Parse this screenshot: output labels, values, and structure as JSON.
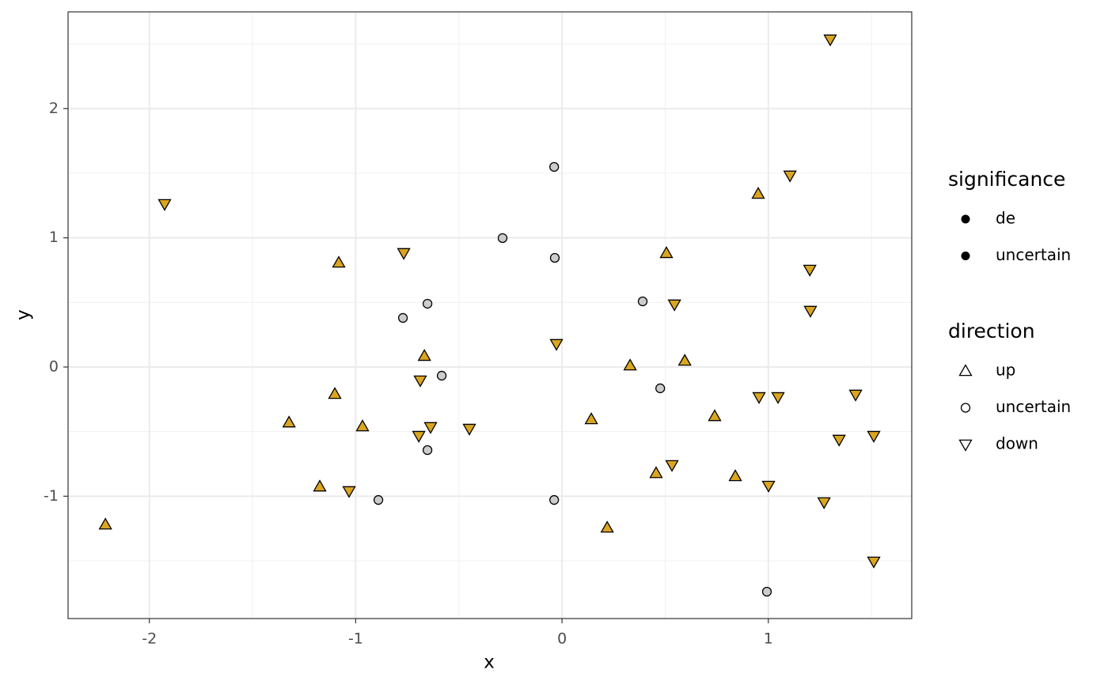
{
  "chart_data": {
    "type": "scatter",
    "x_label": "x",
    "y_label": "y",
    "xlim": [
      -2.394,
      1.695
    ],
    "ylim": [
      -1.947,
      2.749
    ],
    "xticks": [
      -2,
      -1,
      0,
      1
    ],
    "yticks": [
      -1,
      0,
      1,
      2
    ],
    "x_minor_ticks": [
      -1.5,
      -0.5,
      0.5,
      1.5
    ],
    "y_minor_ticks": [
      -1.5,
      -0.5,
      0.5,
      1.5,
      2.5
    ],
    "grid": true,
    "series": [
      {
        "name": "up",
        "shape": "triangle-up",
        "color": "#DAA520",
        "x": [
          -2.213,
          -1.323,
          -1.174,
          -1.101,
          -1.082,
          -0.967,
          -0.667,
          0.142,
          0.219,
          0.33,
          0.456,
          0.506,
          0.595,
          0.74,
          0.84,
          0.951
        ],
        "y": [
          -1.219,
          -0.429,
          -0.925,
          -0.208,
          0.808,
          -0.459,
          0.086,
          -0.404,
          -1.243,
          0.012,
          -0.821,
          0.882,
          0.049,
          -0.38,
          -0.845,
          1.341
        ]
      },
      {
        "name": "uncertain",
        "shape": "circle",
        "color": "#CCCCCC",
        "x": [
          -0.89,
          -0.771,
          -0.652,
          -0.652,
          -0.583,
          -0.288,
          -0.038,
          -0.035,
          -0.038,
          0.391,
          0.476,
          0.993
        ],
        "y": [
          -1.029,
          0.38,
          -0.643,
          0.49,
          -0.067,
          0.998,
          1.549,
          0.845,
          -1.029,
          0.508,
          -0.165,
          -1.739
        ]
      },
      {
        "name": "down",
        "shape": "triangle-down",
        "color": "#DAA520",
        "x": [
          -1.926,
          -1.032,
          -0.767,
          -0.694,
          -0.687,
          -0.637,
          -0.449,
          -0.027,
          0.533,
          0.545,
          0.955,
          1.001,
          1.047,
          1.105,
          1.201,
          1.204,
          1.27,
          1.3,
          1.343,
          1.423,
          1.511,
          1.511
        ],
        "y": [
          1.261,
          -0.961,
          0.882,
          -0.533,
          -0.104,
          -0.465,
          -0.478,
          0.178,
          -0.759,
          0.484,
          -0.233,
          -0.919,
          -0.233,
          1.482,
          0.753,
          0.435,
          -1.047,
          2.535,
          -0.563,
          -0.214,
          -0.533,
          -1.506
        ]
      }
    ],
    "legend_direction_title": "direction",
    "legend_significance": {
      "title": "significance",
      "entries": [
        "de",
        "uncertain"
      ]
    }
  }
}
